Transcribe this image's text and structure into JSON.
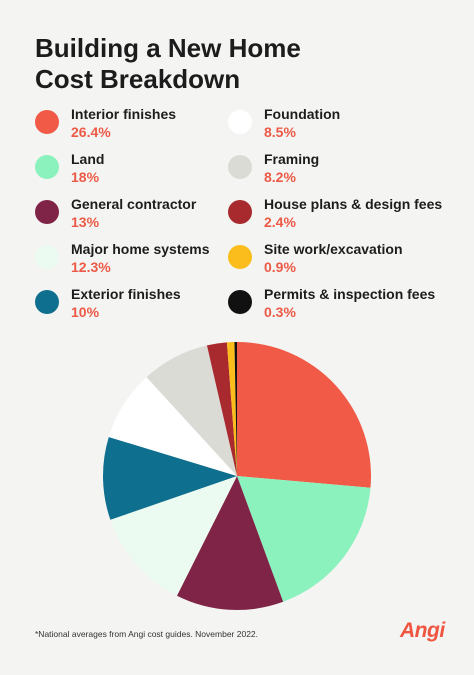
{
  "title_lines": [
    "Building a New Home",
    "Cost Breakdown"
  ],
  "chart_data": {
    "type": "pie",
    "title": "Building a New Home Cost Breakdown",
    "unit": "%",
    "start_angle_deg": 0,
    "direction": "clockwise",
    "slices": [
      {
        "label": "Interior finishes",
        "value": 26.4,
        "display": "26.4%",
        "color": "#f05a46"
      },
      {
        "label": "Land",
        "value": 18,
        "display": "18%",
        "color": "#8bf2be"
      },
      {
        "label": "General contractor",
        "value": 13,
        "display": "13%",
        "color": "#7f2447"
      },
      {
        "label": "Major home systems",
        "value": 12.3,
        "display": "12.3%",
        "color": "#ecfbf1"
      },
      {
        "label": "Exterior finishes",
        "value": 10,
        "display": "10%",
        "color": "#0e6f8e"
      },
      {
        "label": "Foundation",
        "value": 8.5,
        "display": "8.5%",
        "color": "#ffffff"
      },
      {
        "label": "Framing",
        "value": 8.2,
        "display": "8.2%",
        "color": "#dbdbd6"
      },
      {
        "label": "House plans & design fees",
        "value": 2.4,
        "display": "2.4%",
        "color": "#a82a2e"
      },
      {
        "label": "Site work/excavation",
        "value": 0.9,
        "display": "0.9%",
        "color": "#fbbd1b"
      },
      {
        "label": "Permits & inspection fees",
        "value": 0.3,
        "display": "0.3%",
        "color": "#111111"
      }
    ]
  },
  "footnote": "*National averages from Angi cost guides. November 2022.",
  "logo": "Angi"
}
